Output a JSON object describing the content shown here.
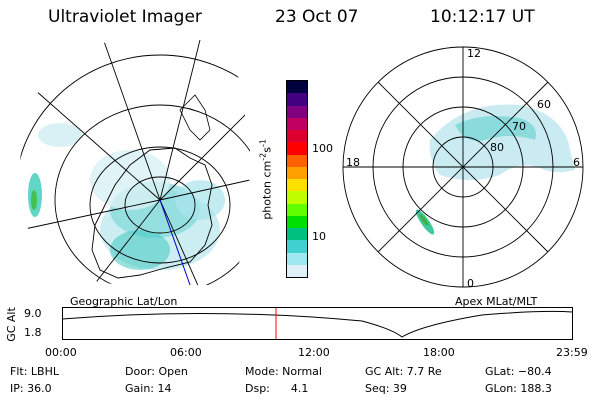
{
  "header": {
    "instrument": "Ultraviolet Imager",
    "date": "23 Oct 07",
    "time": "10:12:17 UT"
  },
  "left_map": {
    "label": "Geographic Lat/Lon"
  },
  "right_map": {
    "label": "Apex MLat/MLT",
    "mlt_labels": [
      "12",
      "18",
      "6",
      "0"
    ],
    "lat_labels": [
      "60",
      "70",
      "80"
    ]
  },
  "colorbar": {
    "unit_label": "photon cm",
    "unit_sup1": "-2",
    "unit_mid": "s",
    "unit_sup2": "-1",
    "ticks": [
      "100",
      "10"
    ],
    "colors": [
      "#000040",
      "#400080",
      "#800080",
      "#c00060",
      "#e00030",
      "#ff0000",
      "#ff6000",
      "#ffa000",
      "#ffe000",
      "#c0ff00",
      "#60ff00",
      "#00e000",
      "#00c080",
      "#40d0d0",
      "#a0e8f0",
      "#e0f0f8"
    ]
  },
  "altitude_plot": {
    "axis_label": "GC Alt",
    "y_ticks": [
      "9.0",
      "1.8"
    ],
    "x_ticks": [
      "00:00",
      "06:00",
      "12:00",
      "18:00",
      "23:59"
    ],
    "marker_color": "#ff0000"
  },
  "status": {
    "row1": [
      {
        "name": "flt",
        "text": "Flt: LBHL"
      },
      {
        "name": "door",
        "text": "Door: Open"
      },
      {
        "name": "mode",
        "text": "Mode: Normal"
      },
      {
        "name": "gc-alt",
        "text": "GC Alt: 7.7 Re"
      },
      {
        "name": "glat",
        "text": "GLat: −80.4"
      }
    ],
    "row2": [
      {
        "name": "ip",
        "text": "IP: 36.0"
      },
      {
        "name": "gain",
        "text": "Gain: 14"
      },
      {
        "name": "dsp",
        "text": "Dsp:      4.1"
      },
      {
        "name": "seq",
        "text": "Seq: 39"
      },
      {
        "name": "glon",
        "text": "GLon: 188.3"
      }
    ]
  }
}
